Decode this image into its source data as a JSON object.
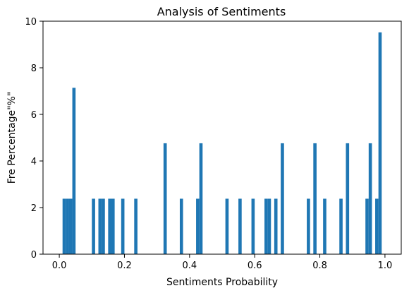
{
  "chart_data": {
    "type": "bar",
    "title": "Analysis of Sentiments",
    "xlabel": "Sentiments Probability",
    "ylabel": "Fre Percentage\"%\"",
    "xlim": [
      -0.05,
      1.05
    ],
    "ylim": [
      0,
      10
    ],
    "xticks": [
      0.0,
      0.2,
      0.4,
      0.6,
      0.8,
      1.0
    ],
    "xtick_labels": [
      "0.0",
      "0.2",
      "0.4",
      "0.6",
      "0.8",
      "1.0"
    ],
    "yticks": [
      0,
      2,
      4,
      6,
      8,
      10
    ],
    "ytick_labels": [
      "0",
      "2",
      "4",
      "6",
      "8",
      "10"
    ],
    "bin_width": 0.01,
    "bar_color": "#1f77b4",
    "grid": false,
    "legend": "none",
    "bins": [
      {
        "x": 0.01,
        "value": 2.38
      },
      {
        "x": 0.02,
        "value": 2.38
      },
      {
        "x": 0.03,
        "value": 2.38
      },
      {
        "x": 0.04,
        "value": 7.14
      },
      {
        "x": 0.1,
        "value": 2.38
      },
      {
        "x": 0.12,
        "value": 2.38
      },
      {
        "x": 0.13,
        "value": 2.38
      },
      {
        "x": 0.15,
        "value": 2.38
      },
      {
        "x": 0.16,
        "value": 2.38
      },
      {
        "x": 0.19,
        "value": 2.38
      },
      {
        "x": 0.23,
        "value": 2.38
      },
      {
        "x": 0.32,
        "value": 4.76
      },
      {
        "x": 0.37,
        "value": 2.38
      },
      {
        "x": 0.42,
        "value": 2.38
      },
      {
        "x": 0.43,
        "value": 4.76
      },
      {
        "x": 0.51,
        "value": 2.38
      },
      {
        "x": 0.55,
        "value": 2.38
      },
      {
        "x": 0.59,
        "value": 2.38
      },
      {
        "x": 0.63,
        "value": 2.38
      },
      {
        "x": 0.64,
        "value": 2.38
      },
      {
        "x": 0.66,
        "value": 2.38
      },
      {
        "x": 0.68,
        "value": 4.76
      },
      {
        "x": 0.76,
        "value": 2.38
      },
      {
        "x": 0.78,
        "value": 4.76
      },
      {
        "x": 0.81,
        "value": 2.38
      },
      {
        "x": 0.86,
        "value": 2.38
      },
      {
        "x": 0.88,
        "value": 4.76
      },
      {
        "x": 0.94,
        "value": 2.38
      },
      {
        "x": 0.95,
        "value": 4.76
      },
      {
        "x": 0.97,
        "value": 2.38
      },
      {
        "x": 0.98,
        "value": 9.52
      }
    ]
  }
}
